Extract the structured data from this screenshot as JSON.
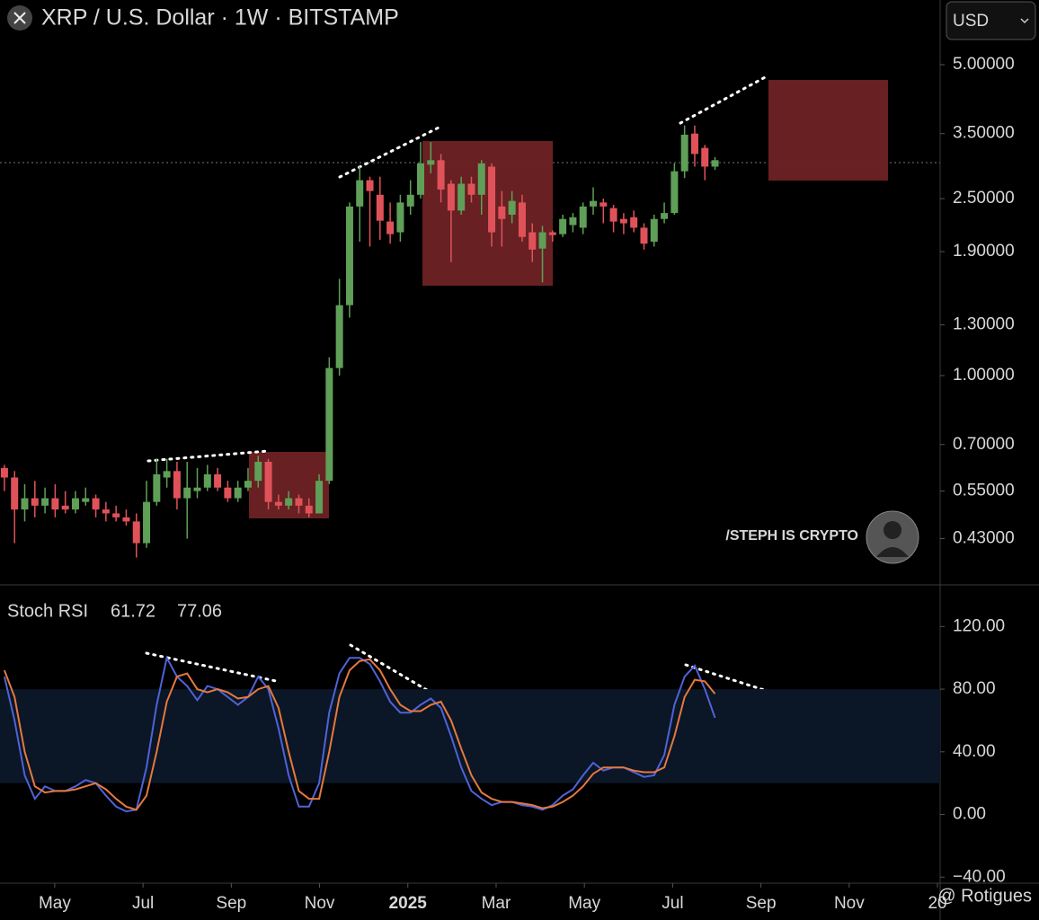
{
  "ui": {
    "currency": "USD",
    "brand": "/STEPH IS CRYPTO",
    "credit": "@ Rotigues"
  },
  "chart_data": [
    {
      "type": "candlestick",
      "title": "XRP / U.S. Dollar · 1W · BITSTAMP",
      "log_scale": true,
      "grid": false,
      "up_color": "#5f9f58",
      "down_color": "#e0525a",
      "x": [
        2.86,
        3.09,
        3.32,
        3.55,
        3.78,
        4.01,
        4.24,
        4.47,
        4.7,
        4.93,
        5.16,
        5.39,
        5.62,
        5.85,
        6.08,
        6.31,
        6.54,
        6.77,
        7.0,
        7.23,
        7.46,
        7.69,
        7.92,
        8.15,
        8.38,
        8.61,
        8.84,
        9.07,
        9.3,
        9.53,
        9.76,
        9.99,
        10.22,
        10.45,
        10.68,
        10.91,
        11.14,
        11.37,
        11.6,
        11.83,
        12.06,
        12.29,
        12.52,
        12.75,
        12.98,
        13.21,
        13.44,
        13.67,
        13.9,
        14.13,
        14.36,
        14.59,
        14.82,
        15.05,
        15.28,
        15.51,
        15.74,
        15.97,
        16.2,
        16.43,
        16.66,
        16.89,
        17.12,
        17.35,
        17.58,
        17.81,
        18.04,
        18.27,
        18.5,
        18.73,
        18.96
      ],
      "open": [
        0.62,
        0.59,
        0.5,
        0.53,
        0.51,
        0.53,
        0.51,
        0.5,
        0.52,
        0.53,
        0.5,
        0.49,
        0.48,
        0.47,
        0.42,
        0.52,
        0.59,
        0.61,
        0.53,
        0.55,
        0.56,
        0.6,
        0.56,
        0.53,
        0.56,
        0.58,
        0.64,
        0.52,
        0.51,
        0.53,
        0.51,
        0.49,
        0.58,
        1.04,
        1.44,
        2.4,
        2.75,
        2.55,
        2.22,
        2.1,
        2.4,
        2.55,
        2.98,
        3.05,
        2.7,
        2.35,
        2.7,
        2.55,
        2.95,
        2.4,
        2.3,
        2.45,
        2.1,
        1.93,
        2.1,
        2.08,
        2.18,
        2.15,
        2.4,
        2.45,
        2.38,
        2.25,
        2.27,
        2.15,
        2.0,
        2.25,
        2.32,
        2.88,
        3.5,
        3.25,
        2.95
      ],
      "high": [
        0.63,
        0.61,
        0.57,
        0.58,
        0.56,
        0.57,
        0.55,
        0.55,
        0.56,
        0.54,
        0.52,
        0.51,
        0.5,
        0.49,
        0.58,
        0.65,
        0.65,
        0.64,
        0.64,
        0.62,
        0.63,
        0.62,
        0.58,
        0.58,
        0.62,
        0.66,
        0.65,
        0.54,
        0.55,
        0.54,
        0.53,
        0.6,
        1.1,
        1.65,
        2.45,
        2.95,
        2.8,
        2.8,
        2.45,
        2.55,
        2.75,
        3.35,
        3.35,
        3.15,
        2.75,
        2.8,
        2.8,
        3.05,
        3.0,
        2.6,
        2.6,
        2.55,
        2.2,
        2.17,
        2.12,
        2.3,
        2.32,
        2.45,
        2.65,
        2.5,
        2.42,
        2.32,
        2.35,
        2.2,
        2.3,
        2.45,
        3.0,
        3.65,
        3.65,
        3.3,
        3.1
      ],
      "low": [
        0.55,
        0.42,
        0.47,
        0.48,
        0.49,
        0.48,
        0.49,
        0.49,
        0.51,
        0.48,
        0.47,
        0.47,
        0.46,
        0.39,
        0.41,
        0.51,
        0.56,
        0.5,
        0.43,
        0.53,
        0.55,
        0.55,
        0.52,
        0.52,
        0.55,
        0.56,
        0.5,
        0.5,
        0.5,
        0.49,
        0.48,
        0.49,
        0.57,
        1.0,
        1.35,
        2.0,
        1.95,
        2.02,
        1.98,
        2.0,
        2.3,
        2.5,
        2.85,
        2.45,
        1.8,
        2.3,
        2.45,
        2.3,
        1.95,
        1.95,
        2.2,
        2.0,
        1.8,
        1.62,
        2.0,
        2.05,
        2.1,
        2.08,
        2.3,
        2.2,
        2.1,
        2.08,
        2.1,
        1.92,
        1.95,
        2.2,
        2.3,
        2.78,
        2.95,
        2.75,
        2.9
      ],
      "close": [
        0.59,
        0.5,
        0.53,
        0.51,
        0.53,
        0.5,
        0.5,
        0.53,
        0.53,
        0.5,
        0.49,
        0.48,
        0.47,
        0.42,
        0.52,
        0.6,
        0.61,
        0.53,
        0.56,
        0.56,
        0.6,
        0.56,
        0.53,
        0.56,
        0.58,
        0.64,
        0.52,
        0.51,
        0.53,
        0.51,
        0.49,
        0.58,
        1.04,
        1.44,
        2.4,
        2.75,
        2.6,
        2.23,
        2.08,
        2.45,
        2.55,
        3.0,
        3.05,
        2.62,
        2.35,
        2.7,
        2.55,
        3.0,
        2.1,
        2.25,
        2.47,
        2.05,
        1.92,
        2.1,
        2.07,
        2.25,
        2.27,
        2.4,
        2.47,
        2.4,
        2.22,
        2.2,
        2.15,
        1.98,
        2.25,
        2.32,
        2.88,
        3.48,
        3.15,
        2.95,
        3.05
      ],
      "xlim": [
        2.76,
        24.06
      ],
      "ylim": [
        0.34,
        6.99
      ],
      "yticks": [
        {
          "value": 5,
          "label": "5.00000"
        },
        {
          "value": 3.5,
          "label": "3.50000"
        },
        {
          "value": 2.5,
          "label": "2.50000"
        },
        {
          "value": 1.9,
          "label": "1.90000"
        },
        {
          "value": 1.3,
          "label": "1.30000"
        },
        {
          "value": 1,
          "label": "1.00000"
        },
        {
          "value": 0.7,
          "label": "0.70000"
        },
        {
          "value": 0.55,
          "label": "0.55000"
        },
        {
          "value": 0.43,
          "label": "0.43000"
        }
      ]
    },
    {
      "type": "line",
      "title": "Stoch RSI",
      "grid": false,
      "band": [
        20,
        80
      ],
      "x": [
        2.86,
        3.09,
        3.32,
        3.55,
        3.78,
        4.01,
        4.24,
        4.47,
        4.7,
        4.93,
        5.16,
        5.39,
        5.62,
        5.85,
        6.08,
        6.31,
        6.54,
        6.77,
        7.0,
        7.23,
        7.46,
        7.69,
        7.92,
        8.15,
        8.38,
        8.61,
        8.84,
        9.07,
        9.3,
        9.53,
        9.76,
        9.99,
        10.22,
        10.45,
        10.68,
        10.91,
        11.14,
        11.37,
        11.6,
        11.83,
        12.06,
        12.29,
        12.52,
        12.75,
        12.98,
        13.21,
        13.44,
        13.67,
        13.9,
        14.13,
        14.36,
        14.59,
        14.82,
        15.05,
        15.28,
        15.51,
        15.74,
        15.97,
        16.2,
        16.43,
        16.66,
        16.89,
        17.12,
        17.35,
        17.58,
        17.81,
        18.04,
        18.27,
        18.5,
        18.73,
        18.96
      ],
      "series": [
        {
          "color": "#4f63d8",
          "values": [
            88,
            60,
            25,
            10,
            18,
            15,
            15,
            18,
            22,
            20,
            12,
            5,
            2,
            3,
            30,
            70,
            100,
            88,
            82,
            73,
            82,
            80,
            75,
            70,
            75,
            88,
            80,
            55,
            25,
            5,
            5,
            20,
            65,
            90,
            100,
            100,
            96,
            85,
            72,
            65,
            65,
            70,
            74,
            68,
            50,
            30,
            15,
            10,
            6,
            8,
            8,
            6,
            5,
            3,
            6,
            12,
            16,
            25,
            33,
            28,
            30,
            30,
            27,
            24,
            25,
            38,
            70,
            88,
            95,
            80,
            61.72
          ]
        },
        {
          "color": "#e5793e",
          "values": [
            92,
            75,
            40,
            18,
            14,
            15,
            15,
            16,
            18,
            20,
            16,
            10,
            5,
            3,
            12,
            40,
            72,
            88,
            90,
            80,
            78,
            80,
            78,
            74,
            75,
            80,
            82,
            68,
            40,
            15,
            10,
            10,
            40,
            75,
            92,
            98,
            99,
            92,
            80,
            70,
            66,
            66,
            70,
            72,
            60,
            42,
            25,
            14,
            10,
            8,
            8,
            7,
            6,
            4,
            5,
            8,
            12,
            18,
            26,
            30,
            30,
            30,
            28,
            27,
            27,
            30,
            50,
            75,
            86,
            85,
            77.06
          ]
        }
      ],
      "xlim": [
        2.76,
        24.06
      ],
      "ylim": [
        -45,
        146
      ],
      "xticks": [
        {
          "value": 4,
          "label": "May"
        },
        {
          "value": 6,
          "label": "Jul"
        },
        {
          "value": 8,
          "label": "Sep"
        },
        {
          "value": 10,
          "label": "Nov"
        },
        {
          "value": 12,
          "label": "2025"
        },
        {
          "value": 14,
          "label": "Mar"
        },
        {
          "value": 16,
          "label": "May"
        },
        {
          "value": 18,
          "label": "Jul"
        },
        {
          "value": 20,
          "label": "Sep"
        },
        {
          "value": 22,
          "label": "Nov"
        },
        {
          "value": 24,
          "label": "20"
        }
      ],
      "yticks": [
        {
          "value": 120,
          "label": "120.00"
        },
        {
          "value": 80,
          "label": "80.00"
        },
        {
          "value": 40,
          "label": "40.00"
        },
        {
          "value": 0,
          "label": "0.00"
        },
        {
          "value": -40,
          "label": "−40.00"
        }
      ]
    }
  ]
}
